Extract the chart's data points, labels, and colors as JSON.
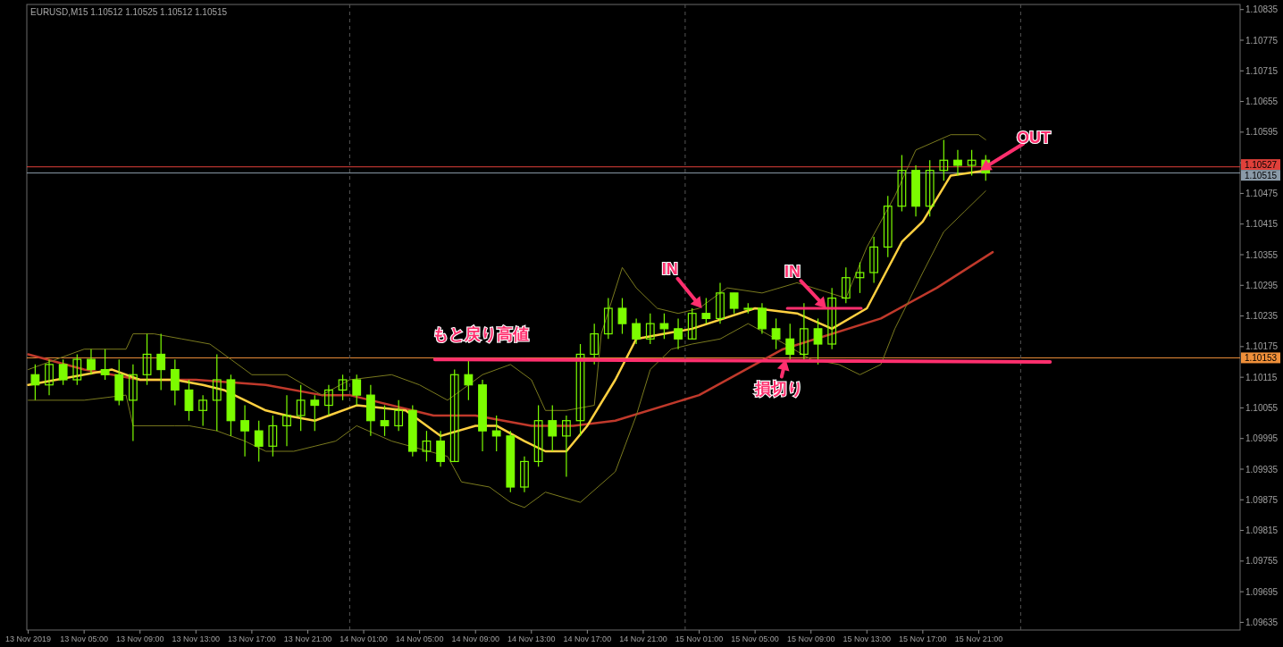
{
  "chart_data": {
    "type": "candlestick",
    "title": "EURUSD,M15  1.10512 1.10525 1.10512 1.10515",
    "color": "#7cfc00",
    "x": [
      "2019-11-13T01:30",
      "2019-11-13T02:30",
      "2019-11-13T03:30",
      "2019-11-13T04:30",
      "2019-11-13T05:30",
      "2019-11-13T06:30",
      "2019-11-13T07:30",
      "2019-11-13T08:30",
      "2019-11-13T09:30",
      "2019-11-13T10:30",
      "2019-11-13T11:30",
      "2019-11-13T12:30",
      "2019-11-13T13:30",
      "2019-11-13T14:30",
      "2019-11-13T15:30",
      "2019-11-13T16:30",
      "2019-11-13T17:30",
      "2019-11-13T18:30",
      "2019-11-13T19:30",
      "2019-11-13T20:30",
      "2019-11-13T21:30",
      "2019-11-13T22:30",
      "2019-11-13T23:30",
      "2019-11-14T00:30",
      "2019-11-14T01:30",
      "2019-11-14T02:30",
      "2019-11-14T03:30",
      "2019-11-14T04:30",
      "2019-11-14T05:30",
      "2019-11-14T06:30",
      "2019-11-14T07:30",
      "2019-11-14T08:30",
      "2019-11-14T09:30",
      "2019-11-14T10:30",
      "2019-11-14T11:30",
      "2019-11-14T12:30",
      "2019-11-14T13:30",
      "2019-11-14T14:30",
      "2019-11-14T15:30",
      "2019-11-14T16:30",
      "2019-11-14T17:30",
      "2019-11-14T18:30",
      "2019-11-14T19:30",
      "2019-11-14T20:30",
      "2019-11-14T21:30",
      "2019-11-14T22:30",
      "2019-11-14T23:30",
      "2019-11-15T00:30",
      "2019-11-15T01:30",
      "2019-11-15T02:30",
      "2019-11-15T03:30",
      "2019-11-15T04:30",
      "2019-11-15T05:30",
      "2019-11-15T06:30",
      "2019-11-15T07:30",
      "2019-11-15T08:30",
      "2019-11-15T09:30",
      "2019-11-15T10:30",
      "2019-11-15T11:30",
      "2019-11-15T12:30",
      "2019-11-15T13:30",
      "2019-11-15T14:30",
      "2019-11-15T15:30",
      "2019-11-15T16:30",
      "2019-11-15T17:30",
      "2019-11-15T18:30",
      "2019-11-15T19:30",
      "2019-11-15T20:30",
      "2019-11-15T21:30"
    ],
    "ohlc": [
      [
        1.1012,
        1.1014,
        1.1007,
        1.101
      ],
      [
        1.101,
        1.1015,
        1.1008,
        1.1014
      ],
      [
        1.1014,
        1.1015,
        1.101,
        1.1011
      ],
      [
        1.1011,
        1.1016,
        1.101,
        1.1015
      ],
      [
        1.1015,
        1.1017,
        1.1012,
        1.1013
      ],
      [
        1.1013,
        1.1017,
        1.1011,
        1.1012
      ],
      [
        1.1012,
        1.1015,
        1.1006,
        1.1007
      ],
      [
        1.1007,
        1.1014,
        1.0999,
        1.1012
      ],
      [
        1.1012,
        1.102,
        1.101,
        1.1016
      ],
      [
        1.1016,
        1.102,
        1.1009,
        1.1013
      ],
      [
        1.1013,
        1.1015,
        1.1006,
        1.1009
      ],
      [
        1.1009,
        1.1011,
        1.1003,
        1.1005
      ],
      [
        1.1005,
        1.1008,
        1.1002,
        1.1007
      ],
      [
        1.1007,
        1.1016,
        1.1001,
        1.1011
      ],
      [
        1.1011,
        1.1012,
        1.1,
        1.1003
      ],
      [
        1.1003,
        1.1006,
        1.0996,
        1.1001
      ],
      [
        1.1001,
        1.1003,
        1.0995,
        1.0998
      ],
      [
        1.0998,
        1.1004,
        1.0996,
        1.1002
      ],
      [
        1.1002,
        1.1008,
        1.0998,
        1.1004
      ],
      [
        1.1004,
        1.101,
        1.1001,
        1.1007
      ],
      [
        1.1007,
        1.1008,
        1.1001,
        1.1006
      ],
      [
        1.1006,
        1.101,
        1.1004,
        1.1009
      ],
      [
        1.1009,
        1.1012,
        1.1007,
        1.1011
      ],
      [
        1.1011,
        1.1012,
        1.1006,
        1.1008
      ],
      [
        1.1008,
        1.101,
        1.1,
        1.1003
      ],
      [
        1.1003,
        1.1006,
        1.1,
        1.1002
      ],
      [
        1.1002,
        1.1007,
        1.1001,
        1.1005
      ],
      [
        1.1005,
        1.1006,
        1.0996,
        1.0997
      ],
      [
        1.0997,
        1.1001,
        1.0995,
        1.0999
      ],
      [
        1.0999,
        1.1001,
        1.0994,
        1.0995
      ],
      [
        1.0995,
        1.1013,
        1.0995,
        1.1012
      ],
      [
        1.1012,
        1.1015,
        1.1007,
        1.101
      ],
      [
        1.101,
        1.1011,
        1.0997,
        1.1001
      ],
      [
        1.1001,
        1.1004,
        1.0997,
        1.1
      ],
      [
        1.1,
        1.1001,
        1.0989,
        1.099
      ],
      [
        1.099,
        1.0996,
        1.0989,
        1.0995
      ],
      [
        1.0995,
        1.1006,
        1.0994,
        1.1003
      ],
      [
        1.1003,
        1.1006,
        1.0997,
        1.1
      ],
      [
        1.1,
        1.1004,
        1.0992,
        1.1003
      ],
      [
        1.1003,
        1.1018,
        1.1,
        1.1016
      ],
      [
        1.1016,
        1.1022,
        1.1014,
        1.102
      ],
      [
        1.102,
        1.1027,
        1.1019,
        1.1025
      ],
      [
        1.1025,
        1.1027,
        1.102,
        1.1022
      ],
      [
        1.1022,
        1.1023,
        1.1018,
        1.1019
      ],
      [
        1.1019,
        1.1024,
        1.1018,
        1.1022
      ],
      [
        1.1022,
        1.1024,
        1.1019,
        1.1021
      ],
      [
        1.1021,
        1.1023,
        1.1017,
        1.1019
      ],
      [
        1.1019,
        1.1025,
        1.1019,
        1.1024
      ],
      [
        1.1024,
        1.1027,
        1.1022,
        1.1023
      ],
      [
        1.1023,
        1.103,
        1.1022,
        1.1028
      ],
      [
        1.1028,
        1.1028,
        1.1024,
        1.1025
      ],
      [
        1.1025,
        1.1026,
        1.1024,
        1.1025
      ],
      [
        1.1025,
        1.1026,
        1.102,
        1.1021
      ],
      [
        1.1021,
        1.1023,
        1.1017,
        1.1019
      ],
      [
        1.1019,
        1.1022,
        1.1015,
        1.1016
      ],
      [
        1.1016,
        1.1026,
        1.1015,
        1.1021
      ],
      [
        1.1021,
        1.1023,
        1.1014,
        1.1018
      ],
      [
        1.1018,
        1.1029,
        1.1017,
        1.1027
      ],
      [
        1.1027,
        1.1033,
        1.1026,
        1.1031
      ],
      [
        1.1031,
        1.1034,
        1.1028,
        1.1032
      ],
      [
        1.1032,
        1.1039,
        1.103,
        1.1037
      ],
      [
        1.1037,
        1.1047,
        1.1035,
        1.1045
      ],
      [
        1.1045,
        1.1055,
        1.1044,
        1.1052
      ],
      [
        1.1052,
        1.1053,
        1.1043,
        1.1045
      ],
      [
        1.1045,
        1.1054,
        1.1043,
        1.1052
      ],
      [
        1.1052,
        1.1058,
        1.105,
        1.1054
      ],
      [
        1.1054,
        1.1056,
        1.1051,
        1.1053
      ],
      [
        1.1053,
        1.1056,
        1.1051,
        1.1054
      ],
      [
        1.1054,
        1.1055,
        1.105,
        1.10515
      ]
    ],
    "series": [
      {
        "type": "line",
        "color": "#c0392b",
        "x": [
          "2019-11-13T01:00",
          "2019-11-13T05:00",
          "2019-11-13T09:00",
          "2019-11-13T13:00",
          "2019-11-13T18:00",
          "2019-11-13T22:00",
          "2019-11-14T00:00",
          "2019-11-14T06:00",
          "2019-11-14T09:00",
          "2019-11-14T13:00",
          "2019-11-14T16:00",
          "2019-11-14T19:00",
          "2019-11-15T01:00",
          "2019-11-15T07:00",
          "2019-11-15T14:00",
          "2019-11-15T18:00",
          "2019-11-15T22:00"
        ],
        "values": [
          1.1016,
          1.1013,
          1.1011,
          1.1011,
          1.101,
          1.1008,
          1.1008,
          1.1004,
          1.1004,
          1.1002,
          1.1002,
          1.1003,
          1.1008,
          1.1017,
          1.1023,
          1.1029,
          1.1036
        ]
      },
      {
        "type": "line",
        "color": "#ffd040",
        "x": [
          "2019-11-13T01:00",
          "2019-11-13T07:00",
          "2019-11-13T09:00",
          "2019-11-13T11:30",
          "2019-11-13T13:30",
          "2019-11-13T15:00",
          "2019-11-13T16:30",
          "2019-11-13T18:00",
          "2019-11-13T19:30",
          "2019-11-13T21:30",
          "2019-11-13T22:30",
          "2019-11-14T00:30",
          "2019-11-14T04:00",
          "2019-11-14T06:30",
          "2019-11-14T09:00",
          "2019-11-14T10:30",
          "2019-11-14T12:30",
          "2019-11-14T14:00",
          "2019-11-14T15:30",
          "2019-11-14T17:00",
          "2019-11-14T19:00",
          "2019-11-14T20:30",
          "2019-11-14T22:30",
          "2019-11-15T00:30",
          "2019-11-15T05:00",
          "2019-11-15T08:00",
          "2019-11-15T10:30",
          "2019-11-15T13:00",
          "2019-11-15T15:30",
          "2019-11-15T17:00",
          "2019-11-15T19:00",
          "2019-11-15T21:30"
        ],
        "values": [
          1.101,
          1.1013,
          1.1011,
          1.1011,
          1.101,
          1.1009,
          1.1007,
          1.1005,
          1.1004,
          1.1003,
          1.1004,
          1.1006,
          1.1005,
          1.1,
          1.1002,
          1.1002,
          1.0999,
          1.0997,
          1.0997,
          1.1002,
          1.1011,
          1.1019,
          1.102,
          1.1021,
          1.1025,
          1.1024,
          1.1021,
          1.1025,
          1.1038,
          1.1042,
          1.1051,
          1.1052
        ]
      },
      {
        "type": "line",
        "color": "#7a7a1e",
        "x": [
          "2019-11-13T01:00",
          "2019-11-13T05:00",
          "2019-11-13T08:00",
          "2019-11-13T08:30",
          "2019-11-13T10:00",
          "2019-11-13T12:00",
          "2019-11-13T14:00",
          "2019-11-13T15:30",
          "2019-11-13T17:00",
          "2019-11-13T19:30",
          "2019-11-13T22:00",
          "2019-11-14T00:00",
          "2019-11-14T03:00",
          "2019-11-14T05:00",
          "2019-11-14T07:00",
          "2019-11-14T09:30",
          "2019-11-14T11:30",
          "2019-11-14T13:00",
          "2019-11-14T14:00",
          "2019-11-14T15:30",
          "2019-11-14T17:30",
          "2019-11-14T18:00",
          "2019-11-14T19:30",
          "2019-11-14T20:30",
          "2019-11-14T22:00",
          "2019-11-14T23:30",
          "2019-11-15T01:00",
          "2019-11-15T03:00",
          "2019-11-15T05:30",
          "2019-11-15T08:00",
          "2019-11-15T11:30",
          "2019-11-15T13:00",
          "2019-11-15T15:00",
          "2019-11-15T16:30",
          "2019-11-15T19:00",
          "2019-11-15T21:00",
          "2019-11-15T21:30"
        ],
        "values": [
          1.1013,
          1.1017,
          1.1017,
          1.102,
          1.102,
          1.1019,
          1.1018,
          1.1015,
          1.1012,
          1.1012,
          1.1008,
          1.1011,
          1.1012,
          1.101,
          1.1007,
          1.1012,
          1.1014,
          1.1011,
          1.1005,
          1.1005,
          1.1006,
          1.102,
          1.1033,
          1.1029,
          1.1025,
          1.1024,
          1.1025,
          1.1029,
          1.1028,
          1.103,
          1.1027,
          1.1037,
          1.1047,
          1.1056,
          1.1059,
          1.1059,
          1.1058
        ]
      },
      {
        "type": "line",
        "color": "#7a7a1e",
        "x": [
          "2019-11-13T01:00",
          "2019-11-13T05:00",
          "2019-11-13T08:00",
          "2019-11-13T08:30",
          "2019-11-13T11:30",
          "2019-11-13T12:30",
          "2019-11-13T14:30",
          "2019-11-13T16:30",
          "2019-11-13T18:00",
          "2019-11-13T20:00",
          "2019-11-13T21:30",
          "2019-11-13T23:00",
          "2019-11-14T00:30",
          "2019-11-14T03:00",
          "2019-11-14T07:00",
          "2019-11-14T08:00",
          "2019-11-14T10:00",
          "2019-11-14T11:30",
          "2019-11-14T12:30",
          "2019-11-14T14:00",
          "2019-11-14T16:30",
          "2019-11-14T19:00",
          "2019-11-14T20:30",
          "2019-11-14T21:30",
          "2019-11-14T23:00",
          "2019-11-15T00:30",
          "2019-11-15T02:30",
          "2019-11-15T04:30",
          "2019-11-15T06:30",
          "2019-11-15T09:00",
          "2019-11-15T11:00",
          "2019-11-15T12:30",
          "2019-11-15T14:00",
          "2019-11-15T15:00",
          "2019-11-15T17:00",
          "2019-11-15T18:30",
          "2019-11-15T20:00",
          "2019-11-15T21:30"
        ],
        "values": [
          1.1007,
          1.1007,
          1.1008,
          1.1002,
          1.1002,
          1.1002,
          1.1001,
          1.0999,
          1.0997,
          1.0997,
          1.0998,
          1.0999,
          1.1002,
          1.0999,
          1.0996,
          1.0991,
          1.099,
          1.0987,
          1.0986,
          1.0989,
          1.0987,
          1.0993,
          1.1004,
          1.1013,
          1.1017,
          1.1018,
          1.1019,
          1.1022,
          1.1019,
          1.1015,
          1.1014,
          1.1012,
          1.1014,
          1.1021,
          1.1032,
          1.104,
          1.1044,
          1.1048
        ]
      },
      {
        "type": "line",
        "color": "#ff2f6e",
        "x": [
          "2019-11-14T06:06",
          "2019-11-16T02:06"
        ],
        "values": [
          1.1015,
          1.10145
        ]
      },
      {
        "type": "line",
        "color": "#ff2f6e",
        "x": [
          "2019-11-15T07:18",
          "2019-11-15T12:36"
        ],
        "values": [
          1.1025,
          1.1025
        ]
      }
    ],
    "ref_lines": [
      {
        "axis": "y",
        "value": 1.10527,
        "label": "1.10527",
        "color": "#e0403a"
      },
      {
        "axis": "y",
        "value": 1.10515,
        "label": "1.10515",
        "color": "#8a9aa8"
      },
      {
        "axis": "y",
        "value": 1.10153,
        "label": "1.10153",
        "color": "#f0903a"
      },
      {
        "axis": "x",
        "value": "2019-11-14T00:00",
        "color": "#555555",
        "line_style": "dashed"
      },
      {
        "axis": "x",
        "value": "2019-11-15T00:00",
        "color": "#555555",
        "line_style": "dashed"
      },
      {
        "axis": "x",
        "value": "2019-11-16T00:00",
        "color": "#555555",
        "line_style": "dashed"
      }
    ],
    "annotations": [
      {
        "text": "もと戻り高値",
        "x": "2019-11-14T09:24",
        "y": 1.1015
      },
      {
        "text": "IN",
        "x": "2019-11-15T01:12",
        "y": 1.1025
      },
      {
        "text": "IN",
        "x": "2019-11-15T10:06",
        "y": 1.1025
      },
      {
        "text": "損切り",
        "x": "2019-11-15T07:12",
        "y": 1.1015
      },
      {
        "text": "OUT",
        "x": "2019-11-15T21:06",
        "y": 1.1052
      }
    ],
    "xlim": [
      "2019-11-13T00:54",
      "2019-11-16T15:42"
    ],
    "ylim": [
      1.0962,
      1.10845
    ],
    "xticks": [
      {
        "value": "2019-11-13T01:00",
        "label": "13 Nov 2019"
      },
      {
        "value": "2019-11-13T05:00",
        "label": "13 Nov 05:00"
      },
      {
        "value": "2019-11-13T09:00",
        "label": "13 Nov 09:00"
      },
      {
        "value": "2019-11-13T13:00",
        "label": "13 Nov 13:00"
      },
      {
        "value": "2019-11-13T17:00",
        "label": "13 Nov 17:00"
      },
      {
        "value": "2019-11-13T21:00",
        "label": "13 Nov 21:00"
      },
      {
        "value": "2019-11-14T01:00",
        "label": "14 Nov 01:00"
      },
      {
        "value": "2019-11-14T05:00",
        "label": "14 Nov 05:00"
      },
      {
        "value": "2019-11-14T09:00",
        "label": "14 Nov 09:00"
      },
      {
        "value": "2019-11-14T13:00",
        "label": "14 Nov 13:00"
      },
      {
        "value": "2019-11-14T17:00",
        "label": "14 Nov 17:00"
      },
      {
        "value": "2019-11-14T21:00",
        "label": "14 Nov 21:00"
      },
      {
        "value": "2019-11-15T01:00",
        "label": "15 Nov 01:00"
      },
      {
        "value": "2019-11-15T05:00",
        "label": "15 Nov 05:00"
      },
      {
        "value": "2019-11-15T09:00",
        "label": "15 Nov 09:00"
      },
      {
        "value": "2019-11-15T13:00",
        "label": "15 Nov 13:00"
      },
      {
        "value": "2019-11-15T17:00",
        "label": "15 Nov 17:00"
      },
      {
        "value": "2019-11-15T21:00",
        "label": "15 Nov 21:00"
      }
    ],
    "yticks": [
      {
        "value": 1.09635,
        "label": "1.09635"
      },
      {
        "value": 1.09695,
        "label": "1.09695"
      },
      {
        "value": 1.09755,
        "label": "1.09755"
      },
      {
        "value": 1.09815,
        "label": "1.09815"
      },
      {
        "value": 1.09875,
        "label": "1.09875"
      },
      {
        "value": 1.09935,
        "label": "1.09935"
      },
      {
        "value": 1.09995,
        "label": "1.09995"
      },
      {
        "value": 1.10055,
        "label": "1.10055"
      },
      {
        "value": 1.10115,
        "label": "1.10115"
      },
      {
        "value": 1.10175,
        "label": "1.10175"
      },
      {
        "value": 1.10235,
        "label": "1.10235"
      },
      {
        "value": 1.10295,
        "label": "1.10295"
      },
      {
        "value": 1.10355,
        "label": "1.10355"
      },
      {
        "value": 1.10415,
        "label": "1.10415"
      },
      {
        "value": 1.10475,
        "label": "1.10475"
      },
      {
        "value": 1.10535,
        "label": null
      },
      {
        "value": 1.10595,
        "label": "1.10595"
      },
      {
        "value": 1.10655,
        "label": "1.10655"
      },
      {
        "value": 1.10715,
        "label": "1.10715"
      },
      {
        "value": 1.10775,
        "label": "1.10775"
      },
      {
        "value": 1.10835,
        "label": "1.10835"
      }
    ]
  }
}
